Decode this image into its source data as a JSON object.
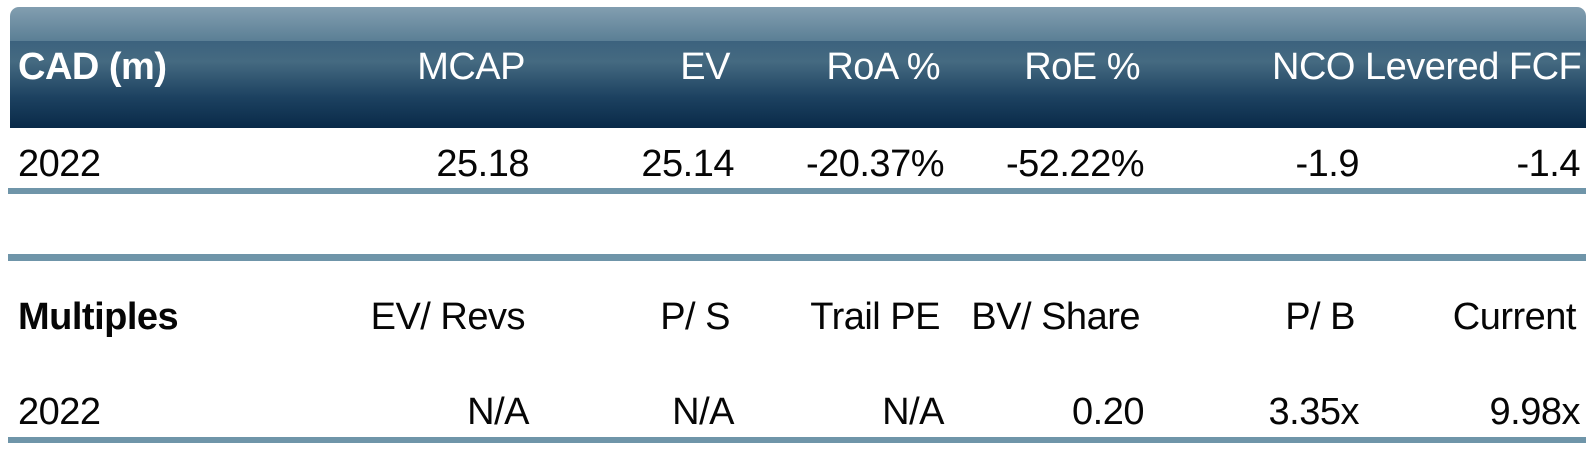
{
  "chart_data": [
    {
      "type": "table",
      "title": "CAD (m) — financial summary",
      "columns": [
        "CAD (m)",
        "MCAP",
        "EV",
        "RoA %",
        "RoE %",
        "NCO",
        "Levered FCF"
      ],
      "rows": [
        [
          "2022",
          "25.18",
          "25.14",
          "-20.37%",
          "-52.22%",
          "-1.9",
          "-1.4"
        ]
      ]
    },
    {
      "type": "table",
      "title": "Multiples",
      "columns": [
        "Multiples",
        "EV/ Revs",
        "P/ S",
        "Trail PE",
        "BV/ Share",
        "P/ B",
        "Current"
      ],
      "rows": [
        [
          "2022",
          "N/A",
          "N/A",
          "N/A",
          "0.20",
          "3.35x",
          "9.98x"
        ]
      ]
    }
  ],
  "financials": {
    "corner_label": "CAD (m)",
    "columns": [
      "MCAP",
      "EV",
      "RoA %",
      "RoE %",
      "NCO",
      "Levered FCF"
    ],
    "row": {
      "year": "2022",
      "values": [
        "25.18",
        "25.14",
        "-20.37%",
        "-52.22%",
        "-1.9",
        "-1.4"
      ]
    }
  },
  "multiples": {
    "corner_label": "Multiples",
    "columns": [
      "EV/ Revs",
      "P/ S",
      "Trail PE",
      "BV/ Share",
      "P/ B",
      "Current"
    ],
    "row": {
      "year": "2022",
      "values": [
        "N/A",
        "N/A",
        "N/A",
        "0.20",
        "3.35x",
        "9.98x"
      ]
    }
  },
  "colors": {
    "header_gradient_top": "#829eb0",
    "header_gradient_bottom": "#092a48",
    "header_text": "#ffffff",
    "divider": "#6f95a9",
    "body_text": "#060606",
    "background": "#ffffff"
  }
}
